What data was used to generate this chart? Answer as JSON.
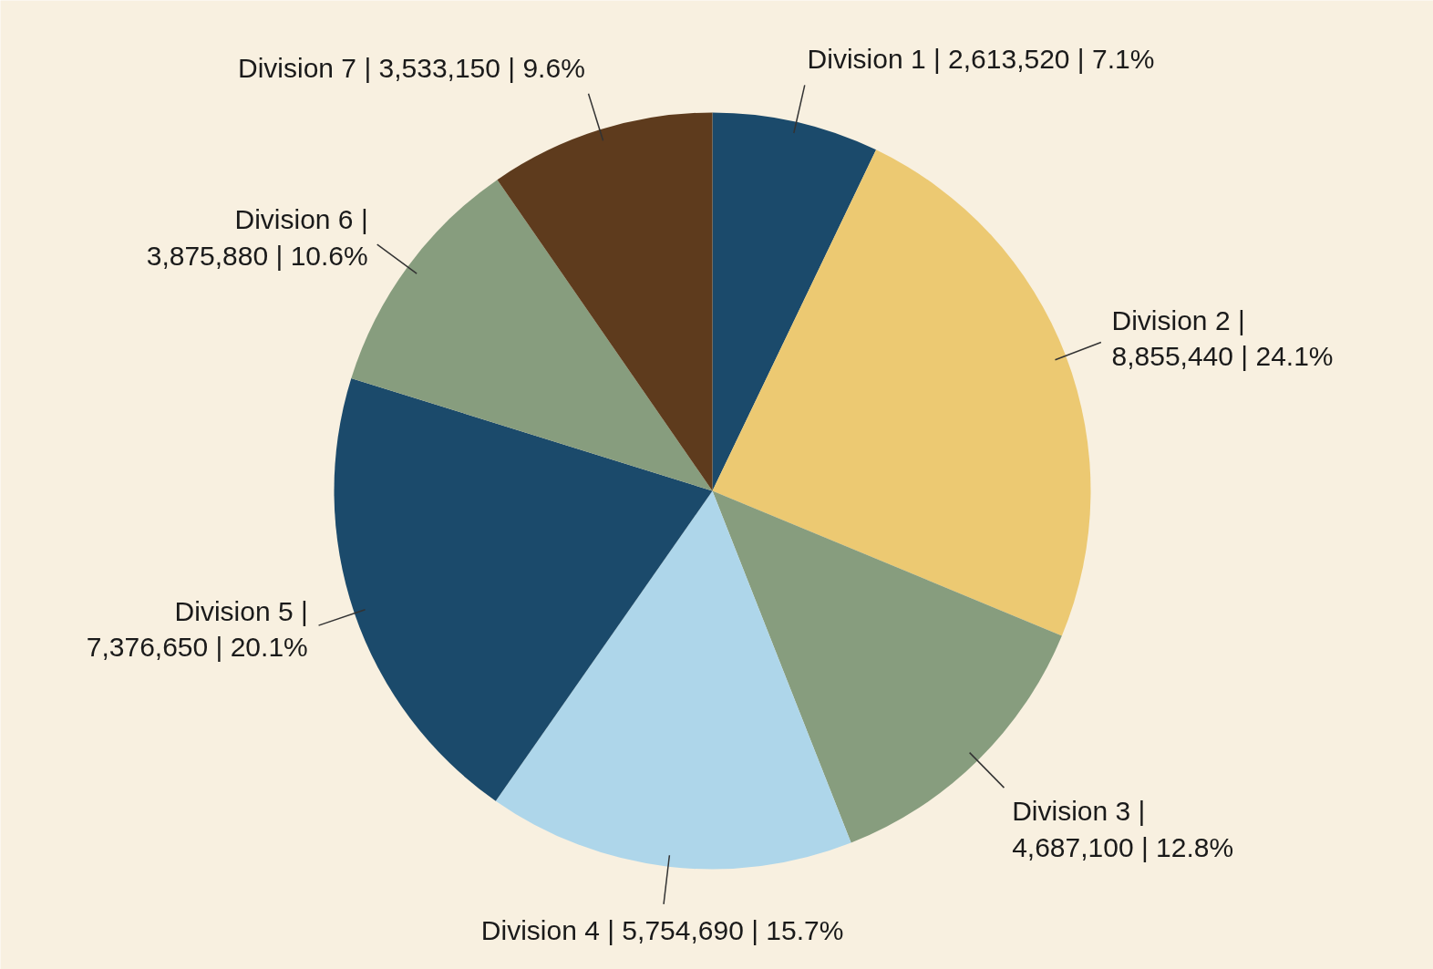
{
  "chart_data": {
    "type": "pie",
    "categories": [
      "Division 1",
      "Division 2",
      "Division 3",
      "Division 4",
      "Division 5",
      "Division 6",
      "Division 7"
    ],
    "values": [
      2613520,
      8855440,
      4687100,
      5754690,
      7376650,
      3875880,
      3533150
    ],
    "colors": [
      "#1b4a6b",
      "#ecc972",
      "#879d7e",
      "#aed6ea",
      "#1b4a6b",
      "#879d7e",
      "#5e3b1d"
    ],
    "value_labels": [
      "| 2,613,520 | 7.1%",
      "|\n8,855,440 | 24.1%",
      "|\n4,687,100 | 12.8%",
      "| 5,754,690 | 15.7%",
      "|\n7,376,650 | 20.1%",
      "|\n3,875,880 | 10.6%",
      "| 3,533,150 | 9.6%"
    ],
    "legend": false
  }
}
